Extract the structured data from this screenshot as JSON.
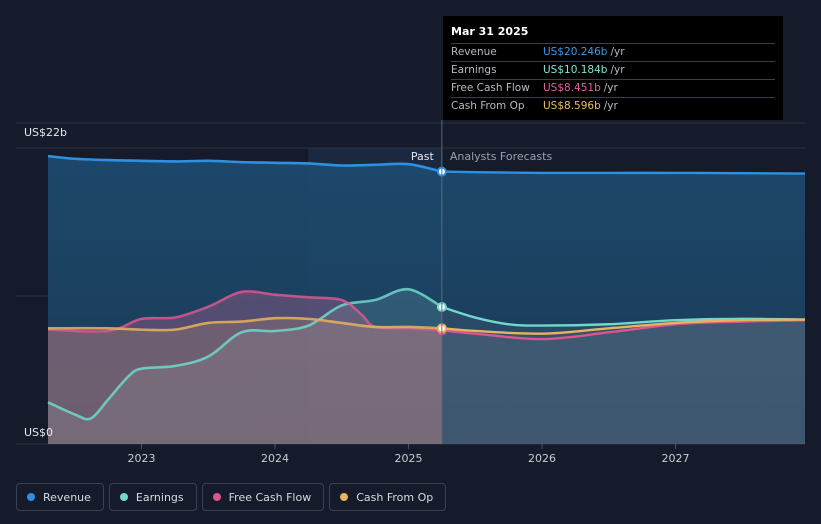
{
  "tooltip": {
    "date": "Mar 31 2025",
    "rows": [
      {
        "label": "Revenue",
        "value": "US$20.246b",
        "unit": "/yr",
        "color": "#3d9be9"
      },
      {
        "label": "Earnings",
        "value": "US$10.184b",
        "unit": "/yr",
        "color": "#7ee6d6"
      },
      {
        "label": "Free Cash Flow",
        "value": "US$8.451b",
        "unit": "/yr",
        "color": "#e0649a"
      },
      {
        "label": "Cash From Op",
        "value": "US$8.596b",
        "unit": "/yr",
        "color": "#f0bd6a"
      }
    ]
  },
  "legend": [
    {
      "label": "Revenue",
      "color": "#2f8fe0"
    },
    {
      "label": "Earnings",
      "color": "#6fd8cb"
    },
    {
      "label": "Free Cash Flow",
      "color": "#d9578e"
    },
    {
      "label": "Cash From Op",
      "color": "#e9b25e"
    }
  ],
  "chart_data": {
    "type": "line",
    "y_top_label": "US$22b",
    "y_bottom_label": "US$0",
    "ylim": [
      0,
      22
    ],
    "xlim": [
      2022.3,
      2027.97
    ],
    "x_ticks": [
      {
        "label": "2023",
        "x": 2023.0
      },
      {
        "label": "2024",
        "x": 2024.0
      },
      {
        "label": "2025",
        "x": 2025.0
      },
      {
        "label": "2026",
        "x": 2026.0
      },
      {
        "label": "2027",
        "x": 2027.0
      }
    ],
    "past_label": "Past",
    "forecast_label": "Analysts Forecasts",
    "divider_x": 2025.25,
    "highlight_start_x": 2024.25,
    "series": [
      {
        "name": "Revenue",
        "color": "#2f8fe0",
        "past": [
          [
            2022.3,
            21.4
          ],
          [
            2022.5,
            21.2
          ],
          [
            2022.75,
            21.1
          ],
          [
            2023.0,
            21.05
          ],
          [
            2023.25,
            21.0
          ],
          [
            2023.5,
            21.05
          ],
          [
            2023.75,
            20.95
          ],
          [
            2024.0,
            20.9
          ],
          [
            2024.25,
            20.85
          ],
          [
            2024.5,
            20.7
          ],
          [
            2024.75,
            20.75
          ],
          [
            2025.0,
            20.8
          ],
          [
            2025.25,
            20.246
          ]
        ],
        "forecast": [
          [
            2025.25,
            20.246
          ],
          [
            2025.5,
            20.2
          ],
          [
            2026.0,
            20.15
          ],
          [
            2026.5,
            20.15
          ],
          [
            2027.0,
            20.15
          ],
          [
            2027.5,
            20.13
          ],
          [
            2027.97,
            20.1
          ]
        ]
      },
      {
        "name": "Earnings",
        "color": "#6fd8cb",
        "past": [
          [
            2022.3,
            3.1
          ],
          [
            2022.5,
            2.2
          ],
          [
            2022.62,
            1.9
          ],
          [
            2022.75,
            3.3
          ],
          [
            2022.9,
            5.0
          ],
          [
            2023.0,
            5.6
          ],
          [
            2023.25,
            5.8
          ],
          [
            2023.5,
            6.5
          ],
          [
            2023.75,
            8.3
          ],
          [
            2024.0,
            8.4
          ],
          [
            2024.25,
            8.8
          ],
          [
            2024.5,
            10.3
          ],
          [
            2024.75,
            10.7
          ],
          [
            2025.0,
            11.5
          ],
          [
            2025.25,
            10.184
          ]
        ],
        "forecast": [
          [
            2025.25,
            10.184
          ],
          [
            2025.5,
            9.4
          ],
          [
            2025.75,
            8.9
          ],
          [
            2026.0,
            8.8
          ],
          [
            2026.5,
            8.9
          ],
          [
            2027.0,
            9.2
          ],
          [
            2027.5,
            9.3
          ],
          [
            2027.97,
            9.25
          ]
        ]
      },
      {
        "name": "Free Cash Flow",
        "color": "#d9578e",
        "past": [
          [
            2022.3,
            8.5
          ],
          [
            2022.75,
            8.4
          ],
          [
            2023.0,
            9.3
          ],
          [
            2023.25,
            9.4
          ],
          [
            2023.5,
            10.2
          ],
          [
            2023.75,
            11.3
          ],
          [
            2024.0,
            11.1
          ],
          [
            2024.25,
            10.9
          ],
          [
            2024.5,
            10.7
          ],
          [
            2024.65,
            9.6
          ],
          [
            2024.75,
            8.7
          ],
          [
            2025.0,
            8.6
          ],
          [
            2025.25,
            8.451
          ]
        ],
        "forecast": [
          [
            2025.25,
            8.451
          ],
          [
            2025.5,
            8.2
          ],
          [
            2026.0,
            7.8
          ],
          [
            2026.5,
            8.3
          ],
          [
            2027.0,
            8.9
          ],
          [
            2027.5,
            9.1
          ],
          [
            2027.97,
            9.2
          ]
        ]
      },
      {
        "name": "Cash From Op",
        "color": "#e9b25e",
        "past": [
          [
            2022.3,
            8.6
          ],
          [
            2022.75,
            8.6
          ],
          [
            2023.0,
            8.5
          ],
          [
            2023.25,
            8.5
          ],
          [
            2023.5,
            9.0
          ],
          [
            2023.75,
            9.1
          ],
          [
            2024.0,
            9.35
          ],
          [
            2024.25,
            9.3
          ],
          [
            2024.5,
            9.0
          ],
          [
            2024.75,
            8.7
          ],
          [
            2025.0,
            8.7
          ],
          [
            2025.25,
            8.596
          ]
        ],
        "forecast": [
          [
            2025.25,
            8.596
          ],
          [
            2025.5,
            8.4
          ],
          [
            2026.0,
            8.2
          ],
          [
            2026.5,
            8.6
          ],
          [
            2027.0,
            9.0
          ],
          [
            2027.5,
            9.2
          ],
          [
            2027.97,
            9.25
          ]
        ]
      }
    ]
  }
}
